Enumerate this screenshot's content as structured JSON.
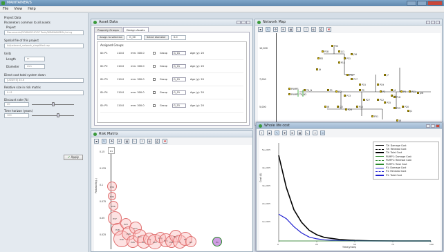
{
  "app": {
    "title": "MAINTAINER/S"
  },
  "menu": [
    {
      "label": "File"
    },
    {
      "label": "View"
    },
    {
      "label": "Help"
    }
  ],
  "left_panel": {
    "project_data": "Project Data",
    "params_common": "Parameters common to all assets",
    "project": "Project",
    "project_path": "Documents/DOWNSCHOOP Tools/WINMAINSEAL/rvi.cg",
    "spatial_file_label": "Spatial file of this project",
    "spatial_file_value": "Adjustment_network_simplified.csp",
    "units_label": "Units",
    "length_label": "Length",
    "length_value": "m",
    "diameter_label": "Diameter",
    "diameter_value": "mm",
    "direct_cost_label": "Direct cost total system down",
    "direct_cost_value": "[US$M 6] 40.6",
    "relative_size_label": "Relative size in risk matrix",
    "relative_size_value": "0.41",
    "discount_rate_label": "Discount rate (%)",
    "discount_rate_value": "20",
    "discount_rate_fraction": 0.5,
    "time_horizon_label": "Time horizon (years)",
    "time_horizon_value": "100",
    "time_horizon_fraction": 0.62,
    "apply_label": "Apply"
  },
  "asset_data": {
    "title": "Asset Data",
    "tabs": [
      {
        "label": "Property Groups"
      },
      {
        "label": "Design Assets"
      }
    ],
    "assign_label": "Assign to selection",
    "assign_value": "G_00",
    "select_diameter_label": "Select diameter",
    "select_diameter_value": "0.0",
    "assigned_groups_label": "Assigned Groups",
    "rows": [
      {
        "id": "ID: P1",
        "v1": "110.0",
        "mm": "mm: 300.0",
        "group": "G_01",
        "age": "Age (y): 20"
      },
      {
        "id": "ID: P2",
        "v1": "110.0",
        "mm": "mm: 300.0",
        "group": "G_01",
        "age": "Age (y): 20"
      },
      {
        "id": "ID: P3",
        "v1": "110.0",
        "mm": "mm: 300.0",
        "group": "G_01",
        "age": "Age (y): 20"
      },
      {
        "id": "ID: P4",
        "v1": "110.0",
        "mm": "mm: 300.0",
        "group": "G_01",
        "age": "Age (y): 20"
      },
      {
        "id": "ID: P5",
        "v1": "110.0",
        "mm": "mm: 300.0",
        "group": "G_01",
        "age": "Age (y): 20"
      }
    ]
  },
  "risk_matrix": {
    "title": "Risk Matrix",
    "y_axis_label": "Probability(-)",
    "y_ticks": [
      "0.15",
      "0.125",
      "0.1",
      "0.075",
      "0.05",
      "0.025"
    ],
    "bubbles": [
      "R1",
      "P34",
      "P35",
      "P36",
      "P37",
      "P18",
      "P30",
      "P23",
      "P29",
      "P28",
      "P17",
      "P19",
      "P20",
      "P21",
      "P22",
      "P24",
      "P25",
      "P26",
      "P27",
      "P4",
      "P5",
      "R3",
      "P1"
    ]
  },
  "network_map": {
    "title": "Network Map",
    "y_ticks": [
      "10,000",
      "7,000",
      "5,000"
    ],
    "labels": [
      "P28",
      "R2",
      "J11",
      "J16",
      "P14",
      "P31",
      "J9",
      "P32",
      "P30",
      "P17",
      "P15",
      "P19",
      "PUMP1",
      "TX_N",
      "PUMP1 TX_N2",
      "P1",
      "J12",
      "P13",
      "P2",
      "P3",
      "J4",
      "P4",
      "P11",
      "J26",
      "P16",
      "J7",
      "J1",
      "P12",
      "P27",
      "P15",
      "J6",
      "J22",
      "P26",
      "P10",
      "P25",
      "P20",
      "J1",
      "P31",
      "J8"
    ]
  },
  "whole_life_cost": {
    "title": "Whole life cost",
    "y_axis_label": "Cost ($)",
    "x_axis_label": "Time(years)",
    "x_ticks": [
      "0",
      "25",
      "50",
      "75",
      "100"
    ],
    "y_ticks": [
      "5e+005",
      "4e+005",
      "3e+005",
      "2e+005",
      "1e+005"
    ],
    "legend": [
      {
        "name": "TX: Damage Cost",
        "color": "#000000",
        "dash": "solid"
      },
      {
        "name": "TX: Renewal Cost",
        "color": "#000000",
        "dash": "dashed"
      },
      {
        "name": "TX: Total Cost",
        "color": "#000000",
        "dash": "thick"
      },
      {
        "name": "PUMP1: Damage Cost",
        "color": "#2e8b2e",
        "dash": "solid"
      },
      {
        "name": "PUMP1: Renewal Cost",
        "color": "#2e8b2e",
        "dash": "dashed"
      },
      {
        "name": "PUMP1: Total Cost",
        "color": "#2e8b2e",
        "dash": "thick"
      },
      {
        "name": "P1: Damage Cost",
        "color": "#2020d0",
        "dash": "solid"
      },
      {
        "name": "P1: Renewal Cost",
        "color": "#2020d0",
        "dash": "dashed"
      },
      {
        "name": "P1: Total Cost",
        "color": "#2020d0",
        "dash": "thick"
      }
    ]
  },
  "chart_data": {
    "type": "line",
    "title": "Whole life cost",
    "xlabel": "Time(years)",
    "ylabel": "Cost ($)",
    "xlim": [
      0,
      100
    ],
    "ylim": [
      0,
      550000
    ],
    "x": [
      0,
      5,
      10,
      15,
      20,
      25,
      30,
      40,
      50,
      60,
      80,
      100
    ],
    "series": [
      {
        "name": "TX: Total Cost",
        "values": [
          480000,
          300000,
          175000,
          105000,
          60000,
          35000,
          20000,
          8000,
          3000,
          1000,
          0,
          0
        ]
      },
      {
        "name": "P1: Total Cost",
        "values": [
          150000,
          125000,
          80000,
          45000,
          22000,
          12000,
          6000,
          2000,
          500,
          0,
          0,
          0
        ]
      },
      {
        "name": "TX: Damage Cost",
        "values": [
          0,
          0,
          0,
          0,
          0,
          0,
          0,
          0,
          0,
          0,
          0,
          0
        ]
      }
    ]
  }
}
